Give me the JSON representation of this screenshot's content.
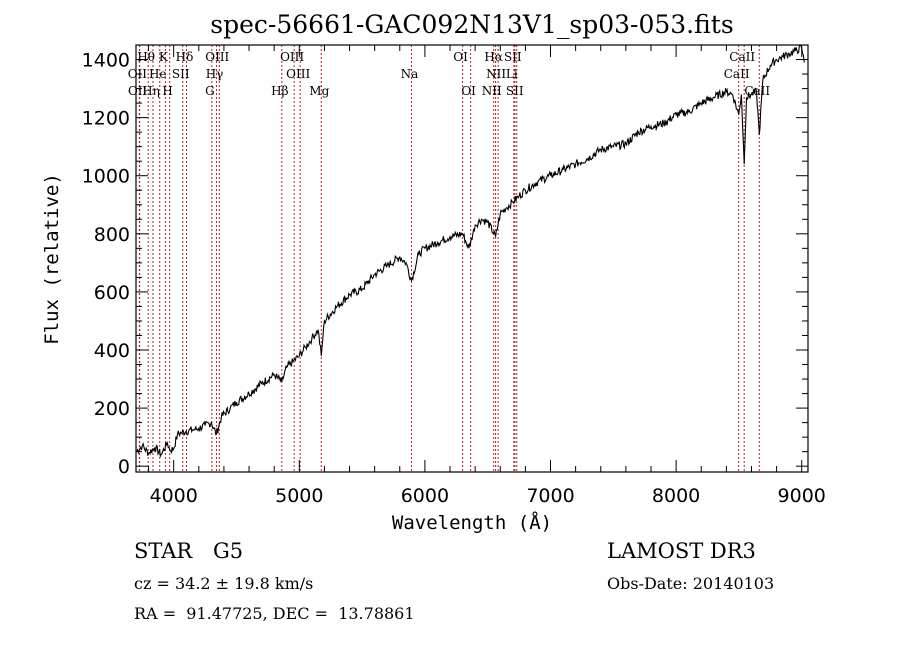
{
  "chart_data": {
    "type": "line",
    "title": "spec-56661-GAC092N13V1_sp03-053.fits",
    "xlabel": "Wavelength (Å)",
    "ylabel": "Flux (relative)",
    "xlim": [
      3700,
      9050
    ],
    "ylim": [
      -20,
      1450
    ],
    "grid": false,
    "x_ticks": [
      4000,
      5000,
      6000,
      7000,
      8000,
      9000
    ],
    "x_tick_labels": [
      "4000",
      "5000",
      "6000",
      "7000",
      "8000",
      "9000"
    ],
    "y_ticks": [
      0,
      200,
      400,
      600,
      800,
      1000,
      1200,
      1400
    ],
    "y_tick_labels": [
      "0",
      "200",
      "400",
      "600",
      "800",
      "1000",
      "1200",
      "1400"
    ],
    "series": [
      {
        "name": "spectrum",
        "color": "#000000",
        "x": [
          3700,
          3750,
          3800,
          3850,
          3900,
          3950,
          3970,
          4000,
          4030,
          4060,
          4100,
          4150,
          4200,
          4250,
          4300,
          4340,
          4380,
          4450,
          4500,
          4600,
          4700,
          4800,
          4861,
          4900,
          4950,
          5000,
          5050,
          5100,
          5150,
          5175,
          5200,
          5300,
          5400,
          5500,
          5600,
          5700,
          5800,
          5850,
          5893,
          5950,
          6000,
          6100,
          6200,
          6300,
          6350,
          6400,
          6450,
          6500,
          6563,
          6600,
          6650,
          6700,
          6750,
          6800,
          6900,
          7000,
          7100,
          7200,
          7300,
          7400,
          7500,
          7600,
          7700,
          7800,
          7900,
          8000,
          8100,
          8200,
          8300,
          8400,
          8450,
          8498,
          8520,
          8542,
          8560,
          8600,
          8640,
          8662,
          8690,
          8750,
          8800,
          8850,
          8900,
          8950,
          9000,
          9020
        ],
        "y": [
          50,
          70,
          45,
          65,
          40,
          80,
          55,
          60,
          110,
          115,
          120,
          125,
          130,
          140,
          150,
          110,
          170,
          200,
          220,
          250,
          285,
          315,
          290,
          340,
          360,
          380,
          410,
          440,
          470,
          380,
          500,
          550,
          590,
          610,
          660,
          690,
          720,
          700,
          640,
          730,
          750,
          770,
          790,
          800,
          750,
          830,
          850,
          840,
          790,
          870,
          890,
          910,
          930,
          950,
          980,
          1000,
          1020,
          1040,
          1060,
          1090,
          1100,
          1110,
          1150,
          1170,
          1180,
          1210,
          1220,
          1250,
          1270,
          1290,
          1280,
          1210,
          1280,
          1040,
          1270,
          1280,
          1290,
          1140,
          1330,
          1380,
          1400,
          1410,
          1420,
          1430,
          1440,
          1390
        ]
      }
    ],
    "spectral_lines": [
      {
        "label": "Hθ",
        "wavelength": 3797,
        "row": 1
      },
      {
        "label": "K",
        "wavelength": 3934,
        "row": 1
      },
      {
        "label": "Hδ",
        "wavelength": 4102,
        "row": 1
      },
      {
        "label": "OIII",
        "wavelength": 4363,
        "row": 1
      },
      {
        "label": "OIII",
        "wavelength": 4959,
        "row": 1
      },
      {
        "label": "OI",
        "wavelength": 6300,
        "row": 1
      },
      {
        "label": "Hα",
        "wavelength": 6563,
        "row": 1
      },
      {
        "label": "SII",
        "wavelength": 6716,
        "row": 1
      },
      {
        "label": "CaII",
        "wavelength": 8542,
        "row": 1
      },
      {
        "label": "OII",
        "wavelength": 3727,
        "row": 2
      },
      {
        "label": "He",
        "wavelength": 3889,
        "row": 2
      },
      {
        "label": "SII",
        "wavelength": 4072,
        "row": 2
      },
      {
        "label": "Hγ",
        "wavelength": 4341,
        "row": 2
      },
      {
        "label": "OIII",
        "wavelength": 5007,
        "row": 2
      },
      {
        "label": "Na",
        "wavelength": 5893,
        "row": 2
      },
      {
        "label": "NII",
        "wavelength": 6583,
        "row": 2
      },
      {
        "label": "Li",
        "wavelength": 6708,
        "row": 2
      },
      {
        "label": "CaII",
        "wavelength": 8498,
        "row": 2
      },
      {
        "label": "OII",
        "wavelength": 3729,
        "row": 3
      },
      {
        "label": "Hη",
        "wavelength": 3835,
        "row": 3
      },
      {
        "label": "H",
        "wavelength": 3968,
        "row": 3
      },
      {
        "label": "G",
        "wavelength": 4304,
        "row": 3
      },
      {
        "label": "Hβ",
        "wavelength": 4861,
        "row": 3
      },
      {
        "label": "Mg",
        "wavelength": 5175,
        "row": 3
      },
      {
        "label": "OI",
        "wavelength": 6364,
        "row": 3
      },
      {
        "label": "NII",
        "wavelength": 6548,
        "row": 3
      },
      {
        "label": "SII",
        "wavelength": 6731,
        "row": 3
      },
      {
        "label": "CaII",
        "wavelength": 8662,
        "row": 3
      }
    ],
    "line_marker_color": "#b22222"
  },
  "info": {
    "object_class": "STAR",
    "subclass": "G5",
    "survey": "LAMOST DR3",
    "redshift": "cz = 34.2 ± 19.8 km/s",
    "obs_date": "Obs-Date: 20140103",
    "coordinates": "RA =  91.47725, DEC =  13.78861"
  }
}
